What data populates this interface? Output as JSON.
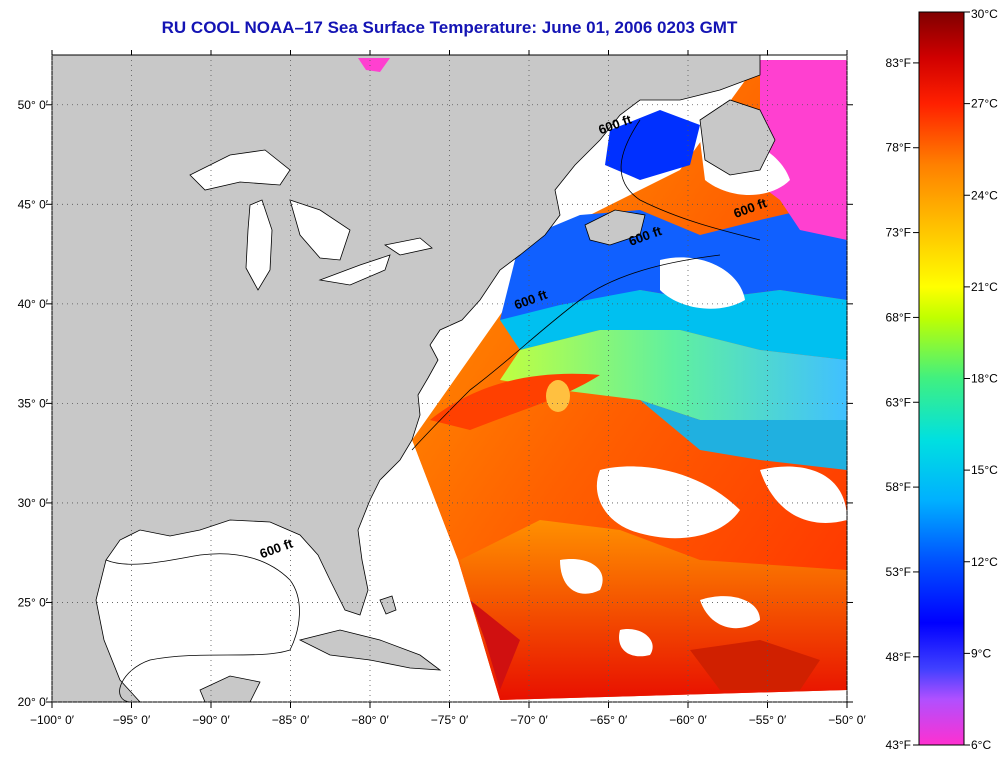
{
  "title": "RU COOL  NOAA–17  Sea Surface Temperature:  June 01, 2006 0203 GMT",
  "map": {
    "lon_range": [
      -100,
      -50
    ],
    "lat_range": [
      20,
      52.5
    ],
    "lon_ticks": [
      "−100° 0′",
      "−95° 0′",
      "−90° 0′",
      "−85° 0′",
      "−80° 0′",
      "−75° 0′",
      "−70° 0′",
      "−65° 0′",
      "−60° 0′",
      "−55° 0′",
      "−50° 0′"
    ],
    "lon_values": [
      -100,
      -95,
      -90,
      -85,
      -80,
      -75,
      -70,
      -65,
      -60,
      -55,
      -50
    ],
    "lat_ticks": [
      "20° 0′",
      "25° 0′",
      "30° 0′",
      "35° 0′",
      "40° 0′",
      "45° 0′",
      "50° 0′"
    ],
    "lat_values": [
      20,
      25,
      30,
      35,
      40,
      45,
      50
    ],
    "grid": "dotted",
    "land_color": "#c8c8c8",
    "cloud_color": "#ffffff",
    "contour_labels": [
      {
        "text": "600 ft",
        "lon": -64.5,
        "lat": 48.8
      },
      {
        "text": "600 ft",
        "lon": -56.0,
        "lat": 44.6
      },
      {
        "text": "600 ft",
        "lon": -62.6,
        "lat": 43.2
      },
      {
        "text": "600 ft",
        "lon": -69.8,
        "lat": 40.0
      },
      {
        "text": "600 ft",
        "lon": -85.8,
        "lat": 27.5
      }
    ]
  },
  "colorbar": {
    "celsius": [
      "30°C",
      "27°C",
      "24°C",
      "21°C",
      "18°C",
      "15°C",
      "12°C",
      "9°C",
      "6°C"
    ],
    "celsius_values": [
      30,
      27,
      24,
      21,
      18,
      15,
      12,
      9,
      6
    ],
    "fahrenheit": [
      "83°F",
      "78°F",
      "73°F",
      "68°F",
      "63°F",
      "58°F",
      "53°F",
      "48°F",
      "43°F"
    ],
    "fahrenheit_values": [
      83,
      78,
      73,
      68,
      63,
      58,
      53,
      48,
      43
    ],
    "range_c": [
      6,
      30
    ],
    "stops": [
      {
        "c": 6,
        "color": "#ff30d0"
      },
      {
        "c": 7.5,
        "color": "#b050ff"
      },
      {
        "c": 8.5,
        "color": "#4040ff"
      },
      {
        "c": 10,
        "color": "#0000ff"
      },
      {
        "c": 12,
        "color": "#0050ff"
      },
      {
        "c": 14,
        "color": "#00b0ff"
      },
      {
        "c": 16,
        "color": "#00e0e0"
      },
      {
        "c": 18,
        "color": "#40f080"
      },
      {
        "c": 20,
        "color": "#c0ff00"
      },
      {
        "c": 21,
        "color": "#ffff00"
      },
      {
        "c": 23,
        "color": "#ffc000"
      },
      {
        "c": 25,
        "color": "#ff8000"
      },
      {
        "c": 27,
        "color": "#ff2000"
      },
      {
        "c": 28.5,
        "color": "#d00000"
      },
      {
        "c": 30,
        "color": "#800000"
      }
    ]
  }
}
